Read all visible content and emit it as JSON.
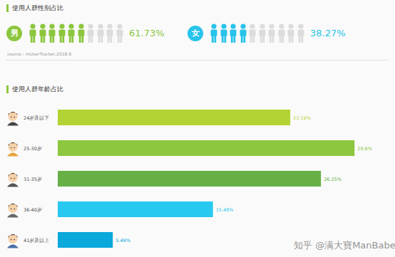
{
  "chart_data": [
    {
      "type": "pictogram",
      "title": "使用人群性别占比",
      "categories": [
        "男",
        "女"
      ],
      "values": [
        61.73,
        38.27
      ],
      "value_labels": [
        "61.73%",
        "38.27%"
      ],
      "colors": [
        "#8cc63e",
        "#28c3ea"
      ],
      "data_labels": true,
      "annotations": [
        "source：mUserTracker,2018.9"
      ]
    },
    {
      "type": "bar",
      "title": "使用人群年龄占比",
      "orientation": "horizontal",
      "categories": [
        "24岁及以下",
        "25-30岁",
        "31-35岁",
        "36-40岁",
        "41岁及以上"
      ],
      "values": [
        23.19,
        29.6,
        26.25,
        15.48,
        5.49
      ],
      "value_labels": [
        "23.19%",
        "29.6%",
        "26.25%",
        "15.48%",
        "5.49%"
      ],
      "colors": [
        "#b3d334",
        "#8dc63f",
        "#66b046",
        "#27c9f0",
        "#0aa8db"
      ],
      "xlim": [
        0,
        32
      ],
      "data_labels": true,
      "tick_labels": "y",
      "annotations": [
        "知乎 @满大寶ManBabe"
      ]
    }
  ]
}
